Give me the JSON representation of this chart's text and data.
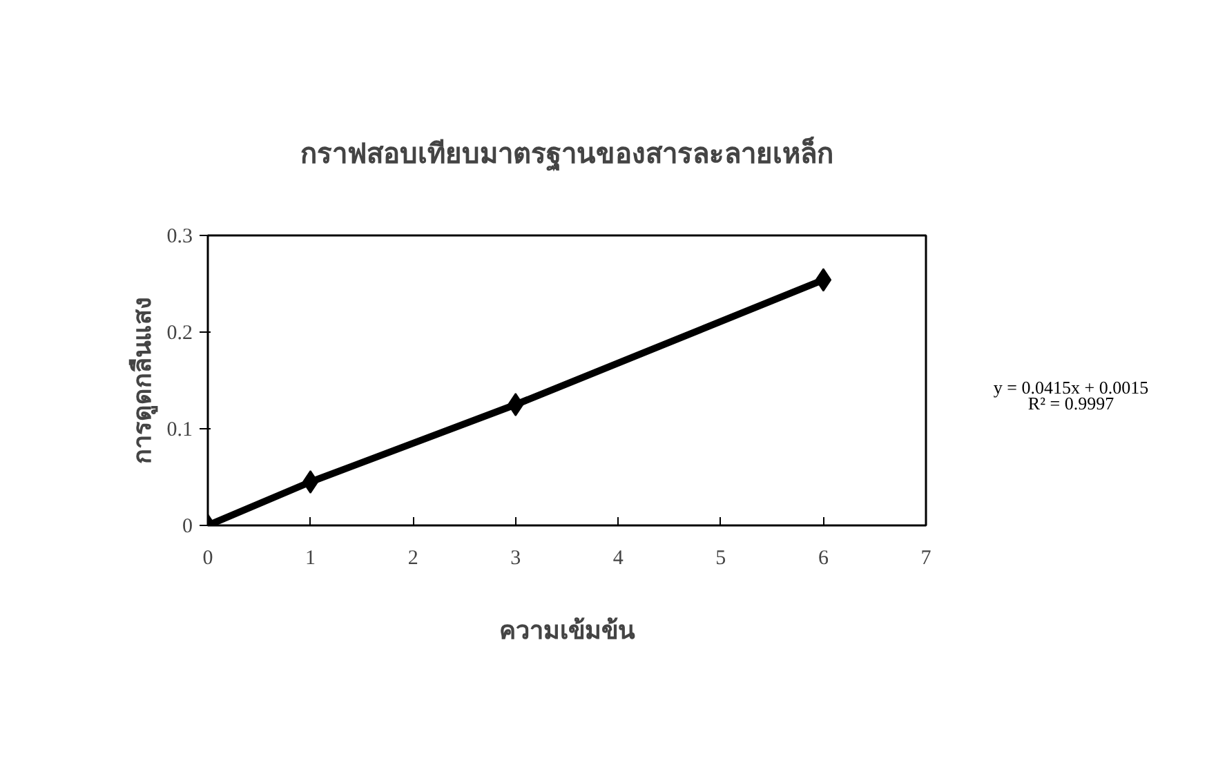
{
  "chart_data": {
    "type": "line",
    "title": "กราฟสอบเทียบมาตรฐานของสารละลายเหล็ก",
    "xlabel": "ความเข้มข้น",
    "ylabel": "การดูดกลืนแสง",
    "x": [
      0,
      1,
      3,
      6
    ],
    "series": [
      {
        "color": "#000000",
        "values": [
          0,
          0.045,
          0.125,
          0.254
        ]
      }
    ],
    "marker": "diamond",
    "line_style": "solid",
    "grid": false,
    "xlim": [
      0,
      7
    ],
    "xticks": [
      0,
      1,
      2,
      3,
      4,
      5,
      6,
      7
    ],
    "ylim": [
      0,
      0.3
    ],
    "yticks": [
      0,
      0.1,
      0.2,
      0.3
    ],
    "annotations": [
      "y = 0.0415x + 0.0015",
      "R² = 0.9997"
    ]
  }
}
